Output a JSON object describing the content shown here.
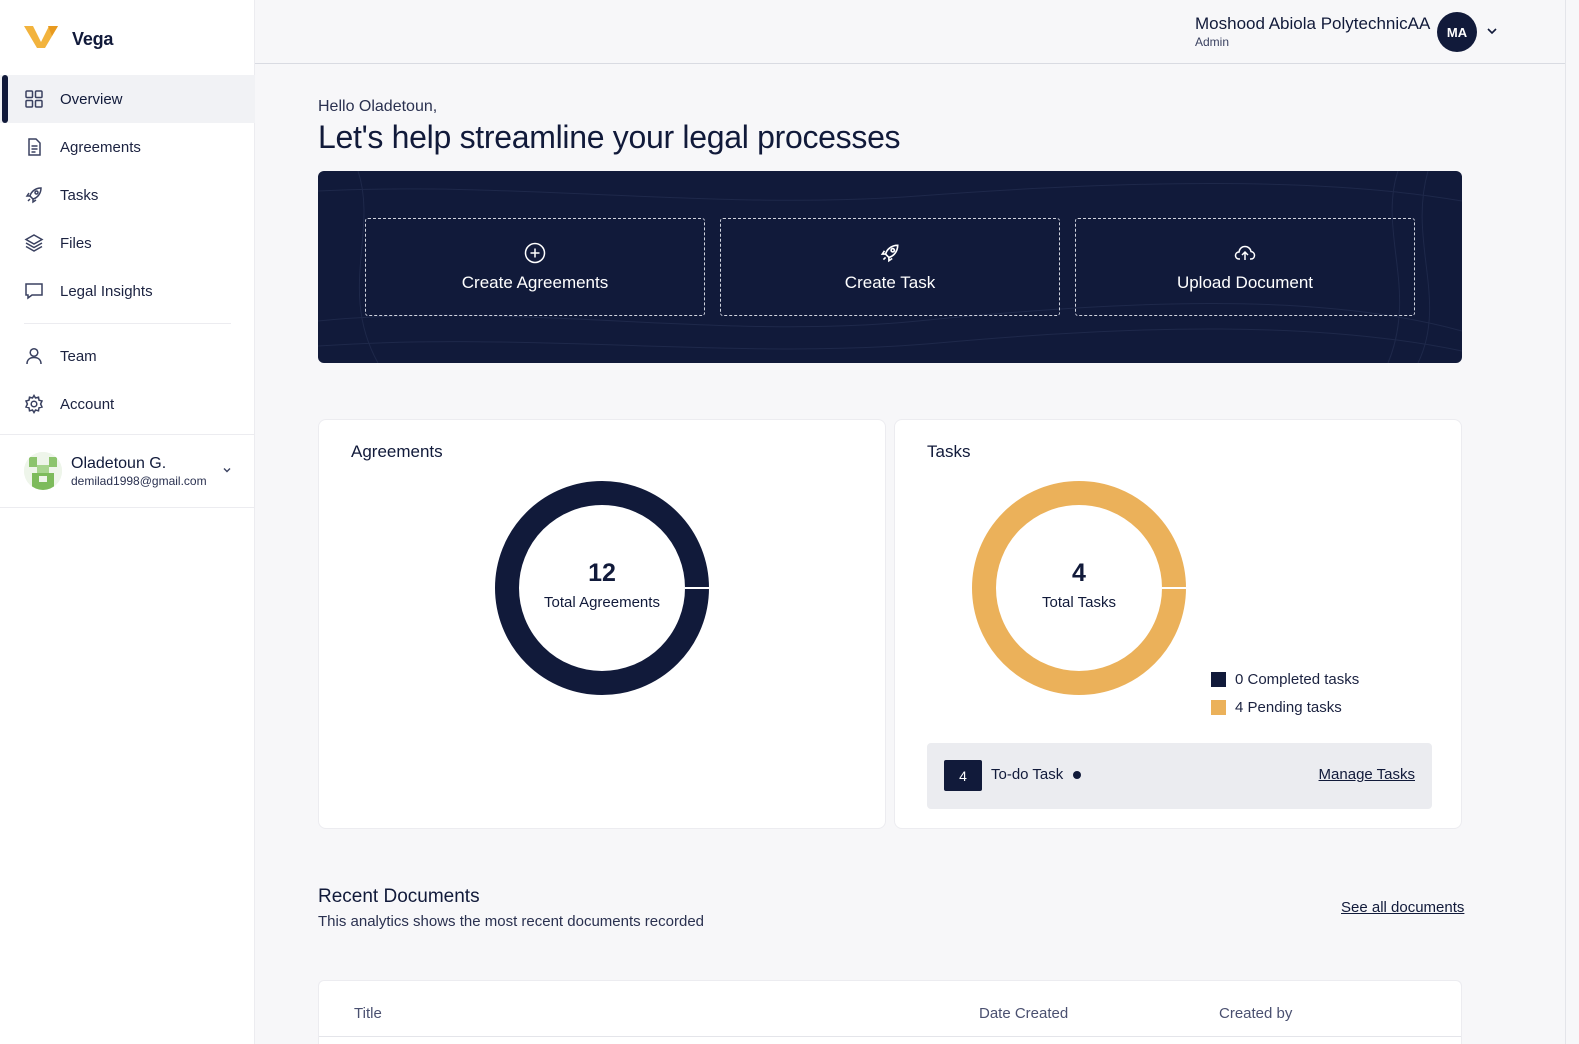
{
  "brand": {
    "name": "Vega",
    "accent": "#f2b33d"
  },
  "sidebar": {
    "items": [
      {
        "label": "Overview",
        "icon": "grid-icon",
        "active": true
      },
      {
        "label": "Agreements",
        "icon": "document-icon"
      },
      {
        "label": "Tasks",
        "icon": "rocket-icon"
      },
      {
        "label": "Files",
        "icon": "layers-icon"
      },
      {
        "label": "Legal Insights",
        "icon": "chat-icon"
      }
    ],
    "items2": [
      {
        "label": "Team",
        "icon": "user-icon"
      },
      {
        "label": "Account",
        "icon": "gear-icon"
      }
    ],
    "user": {
      "name": "Oladetoun G.",
      "email": "demilad1998@gmail.com"
    }
  },
  "header": {
    "org_name": "Moshood Abiola PolytechnicAA",
    "role": "Admin",
    "initials": "MA"
  },
  "main": {
    "greeting": "Hello Oladetoun,",
    "headline": "Let's help streamline your legal processes",
    "actions": [
      {
        "label": "Create Agreements",
        "icon": "plus-circle-icon"
      },
      {
        "label": "Create Task",
        "icon": "rocket-icon"
      },
      {
        "label": "Upload Document",
        "icon": "cloud-upload-icon"
      }
    ]
  },
  "agreements_card": {
    "title": "Agreements",
    "total": "12",
    "total_label": "Total Agreements"
  },
  "tasks_card": {
    "title": "Tasks",
    "total": "4",
    "total_label": "Total Tasks",
    "legend": [
      {
        "label": "0 Completed tasks",
        "color": "#111a3a"
      },
      {
        "label": "4 Pending tasks",
        "color": "#ebb15a"
      }
    ],
    "todo": {
      "count": "4",
      "label": "To-do Task",
      "link": "Manage Tasks"
    }
  },
  "recent_documents": {
    "title": "Recent Documents",
    "subtitle": "This analytics shows the most recent documents recorded",
    "link": "See all documents",
    "columns": [
      "Title",
      "Date Created",
      "Created by"
    ]
  },
  "chart_data": [
    {
      "type": "pie",
      "title": "Agreements",
      "categories": [
        "Agreements"
      ],
      "values": [
        12
      ],
      "colors": [
        "#111a3a"
      ]
    },
    {
      "type": "pie",
      "title": "Tasks",
      "categories": [
        "Completed tasks",
        "Pending tasks"
      ],
      "values": [
        0,
        4
      ],
      "colors": [
        "#111a3a",
        "#ebb15a"
      ]
    }
  ]
}
